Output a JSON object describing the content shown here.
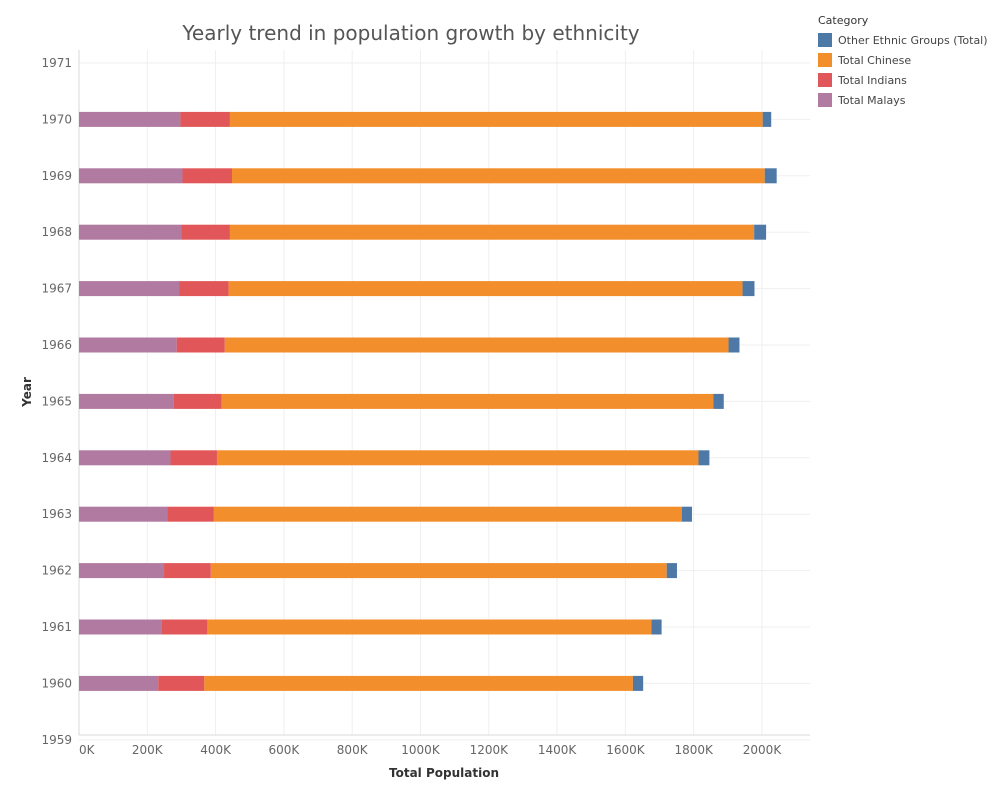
{
  "chart_data": {
    "type": "bar",
    "orientation": "horizontal",
    "stacked": true,
    "title": "Yearly trend in population growth by ethnicity",
    "xlabel": "Total Population",
    "ylabel": "Year",
    "xlim": [
      0,
      2150000
    ],
    "x_ticks": [
      "0K",
      "200K",
      "400K",
      "600K",
      "800K",
      "1000K",
      "1200K",
      "1400K",
      "1600K",
      "1800K",
      "2000K"
    ],
    "x_tick_values": [
      0,
      200000,
      400000,
      600000,
      800000,
      1000000,
      1200000,
      1400000,
      1600000,
      1800000,
      2000000
    ],
    "y_ticks": [
      "1971",
      "1970",
      "1969",
      "1968",
      "1967",
      "1966",
      "1965",
      "1964",
      "1963",
      "1962",
      "1961",
      "1960",
      "1959"
    ],
    "categories": [
      "1970",
      "1969",
      "1968",
      "1967",
      "1966",
      "1965",
      "1964",
      "1963",
      "1962",
      "1961",
      "1960"
    ],
    "grid": true,
    "legend_position": "top-right",
    "legend_title": "Category",
    "series": [
      {
        "name": "Total Malays",
        "color": "#b07aa1",
        "values": [
          297000,
          303000,
          300000,
          293000,
          286000,
          278000,
          268000,
          258000,
          249000,
          241000,
          232000
        ]
      },
      {
        "name": "Total Indians",
        "color": "#e15759",
        "values": [
          145000,
          145000,
          142000,
          145000,
          141000,
          140000,
          136000,
          137000,
          137000,
          135000,
          135000
        ]
      },
      {
        "name": "Total Chinese",
        "color": "#f28e2b",
        "values": [
          1560000,
          1560000,
          1535000,
          1505000,
          1475000,
          1440000,
          1410000,
          1370000,
          1335000,
          1300000,
          1255000
        ]
      },
      {
        "name": "Other Ethnic Groups (Total)",
        "color": "#4e79a7",
        "values": [
          25000,
          35000,
          35000,
          35000,
          32000,
          30000,
          32000,
          30000,
          30000,
          30000,
          30000
        ]
      }
    ],
    "legend_order": [
      "Other Ethnic Groups (Total)",
      "Total Chinese",
      "Total Indians",
      "Total Malays"
    ]
  }
}
